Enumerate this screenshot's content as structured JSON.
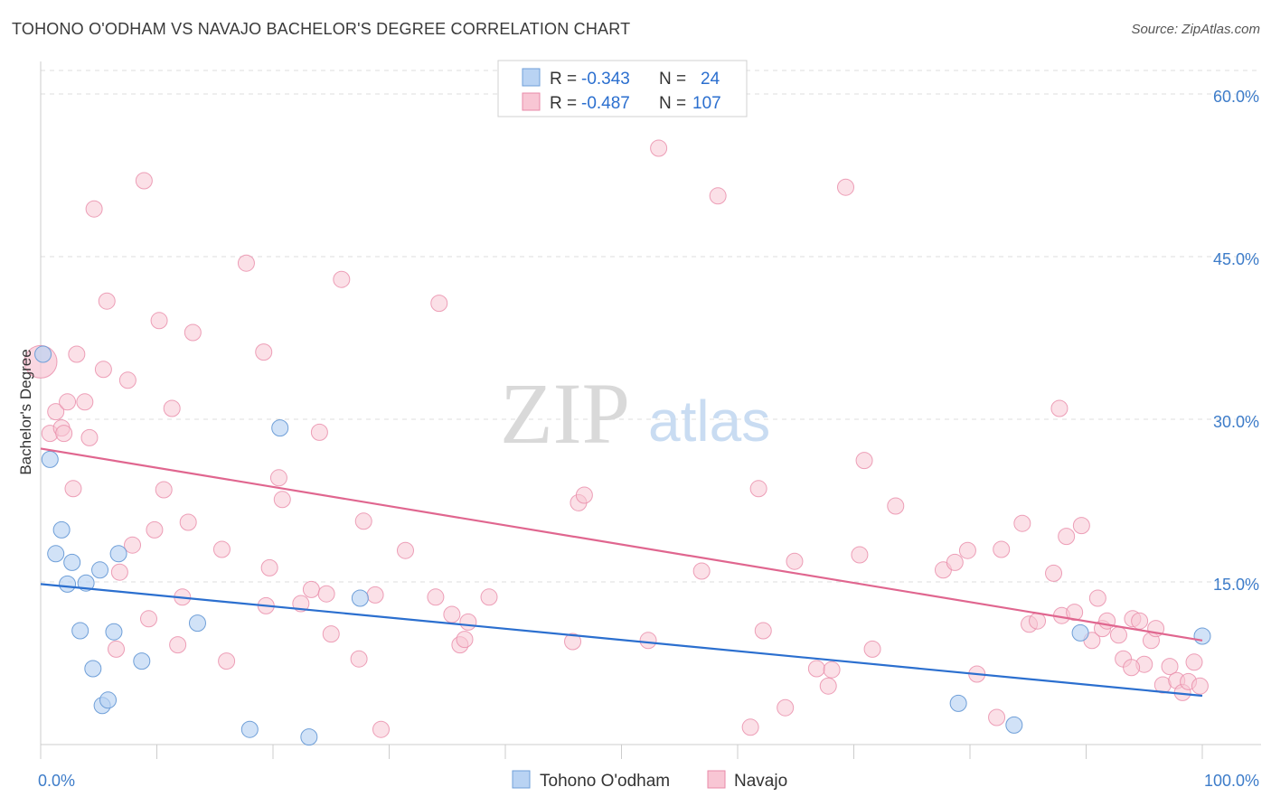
{
  "header": {
    "title": "TOHONO O'ODHAM VS NAVAJO BACHELOR'S DEGREE CORRELATION CHART",
    "source": "Source: ZipAtlas.com"
  },
  "watermark": {
    "part1": "ZIP",
    "part2": "atlas"
  },
  "colors": {
    "blue_fill": "#b9d3f3",
    "blue_stroke": "#6f9fd8",
    "blue_line": "#2b6fcf",
    "pink_fill": "#f8c6d4",
    "pink_stroke": "#e98aa8",
    "pink_line": "#e0668f",
    "tick": "#3d7cc9",
    "grid": "#dddddd"
  },
  "legend": {
    "rows": [
      {
        "r_label": "R =",
        "r_value": "-0.343",
        "n_label": "N =",
        "n_value": "24"
      },
      {
        "r_label": "R =",
        "r_value": "-0.487",
        "n_label": "N =",
        "n_value": "107"
      }
    ]
  },
  "chart_data": {
    "type": "scatter",
    "title": "TOHONO O'ODHAM VS NAVAJO BACHELOR'S DEGREE CORRELATION CHART",
    "xlabel": "",
    "ylabel": "Bachelor's Degree",
    "xlim": [
      0,
      100
    ],
    "ylim": [
      0,
      63
    ],
    "x_tick_labels": [
      "0.0%",
      "100.0%"
    ],
    "y_ticks": [
      15,
      30,
      45,
      60
    ],
    "y_tick_labels": [
      "15.0%",
      "30.0%",
      "45.0%",
      "60.0%"
    ],
    "series": [
      {
        "name": "Tohono O'odham",
        "color": "blue",
        "R": -0.343,
        "N": 24,
        "trend": {
          "x": [
            0,
            100
          ],
          "y": [
            14.8,
            4.5
          ]
        },
        "points": [
          {
            "x": 0.2,
            "y": 36.0
          },
          {
            "x": 0.8,
            "y": 26.3
          },
          {
            "x": 1.3,
            "y": 17.6
          },
          {
            "x": 1.8,
            "y": 19.8
          },
          {
            "x": 2.3,
            "y": 14.8
          },
          {
            "x": 2.7,
            "y": 16.8
          },
          {
            "x": 3.4,
            "y": 10.5
          },
          {
            "x": 3.9,
            "y": 14.9
          },
          {
            "x": 4.5,
            "y": 7.0
          },
          {
            "x": 5.1,
            "y": 16.1
          },
          {
            "x": 5.3,
            "y": 3.6
          },
          {
            "x": 5.8,
            "y": 4.1
          },
          {
            "x": 6.3,
            "y": 10.4
          },
          {
            "x": 6.7,
            "y": 17.6
          },
          {
            "x": 8.7,
            "y": 7.7
          },
          {
            "x": 13.5,
            "y": 11.2
          },
          {
            "x": 18.0,
            "y": 1.4
          },
          {
            "x": 20.6,
            "y": 29.2
          },
          {
            "x": 23.1,
            "y": 0.7
          },
          {
            "x": 27.5,
            "y": 13.5
          },
          {
            "x": 83.8,
            "y": 1.8
          },
          {
            "x": 79.0,
            "y": 3.8
          },
          {
            "x": 89.5,
            "y": 10.3
          },
          {
            "x": 100.0,
            "y": 10.0
          }
        ]
      },
      {
        "name": "Navajo",
        "color": "pink",
        "R": -0.487,
        "N": 107,
        "trend": {
          "x": [
            0,
            100
          ],
          "y": [
            27.3,
            9.6
          ]
        },
        "points": [
          {
            "x": 0.0,
            "y": 35.3
          },
          {
            "x": 0.8,
            "y": 28.7
          },
          {
            "x": 1.3,
            "y": 30.7
          },
          {
            "x": 1.8,
            "y": 29.2
          },
          {
            "x": 2.0,
            "y": 28.7
          },
          {
            "x": 2.3,
            "y": 31.6
          },
          {
            "x": 2.8,
            "y": 23.6
          },
          {
            "x": 3.1,
            "y": 36.0
          },
          {
            "x": 3.8,
            "y": 31.6
          },
          {
            "x": 4.2,
            "y": 28.3
          },
          {
            "x": 4.6,
            "y": 49.4
          },
          {
            "x": 5.4,
            "y": 34.6
          },
          {
            "x": 5.7,
            "y": 40.9
          },
          {
            "x": 6.5,
            "y": 8.8
          },
          {
            "x": 6.8,
            "y": 15.9
          },
          {
            "x": 7.5,
            "y": 33.6
          },
          {
            "x": 7.9,
            "y": 18.4
          },
          {
            "x": 8.9,
            "y": 52.0
          },
          {
            "x": 9.3,
            "y": 11.6
          },
          {
            "x": 9.8,
            "y": 19.8
          },
          {
            "x": 10.2,
            "y": 39.1
          },
          {
            "x": 10.6,
            "y": 23.5
          },
          {
            "x": 11.3,
            "y": 31.0
          },
          {
            "x": 11.8,
            "y": 9.2
          },
          {
            "x": 12.2,
            "y": 13.6
          },
          {
            "x": 12.7,
            "y": 20.5
          },
          {
            "x": 13.1,
            "y": 38.0
          },
          {
            "x": 16.0,
            "y": 7.7
          },
          {
            "x": 15.6,
            "y": 18.0
          },
          {
            "x": 17.7,
            "y": 44.4
          },
          {
            "x": 19.2,
            "y": 36.2
          },
          {
            "x": 19.4,
            "y": 12.8
          },
          {
            "x": 19.7,
            "y": 16.3
          },
          {
            "x": 20.5,
            "y": 24.6
          },
          {
            "x": 20.8,
            "y": 22.6
          },
          {
            "x": 22.4,
            "y": 13.0
          },
          {
            "x": 23.3,
            "y": 14.3
          },
          {
            "x": 24.0,
            "y": 28.8
          },
          {
            "x": 24.6,
            "y": 13.9
          },
          {
            "x": 25.0,
            "y": 10.2
          },
          {
            "x": 25.9,
            "y": 42.9
          },
          {
            "x": 27.4,
            "y": 7.9
          },
          {
            "x": 27.8,
            "y": 20.6
          },
          {
            "x": 28.8,
            "y": 13.8
          },
          {
            "x": 29.3,
            "y": 1.4
          },
          {
            "x": 31.4,
            "y": 17.9
          },
          {
            "x": 34.0,
            "y": 13.6
          },
          {
            "x": 34.3,
            "y": 40.7
          },
          {
            "x": 35.4,
            "y": 12.0
          },
          {
            "x": 36.1,
            "y": 9.2
          },
          {
            "x": 36.5,
            "y": 9.7
          },
          {
            "x": 36.8,
            "y": 11.3
          },
          {
            "x": 38.6,
            "y": 13.6
          },
          {
            "x": 45.8,
            "y": 9.5
          },
          {
            "x": 46.3,
            "y": 22.3
          },
          {
            "x": 46.8,
            "y": 23.0
          },
          {
            "x": 52.3,
            "y": 9.6
          },
          {
            "x": 53.2,
            "y": 55.0
          },
          {
            "x": 56.9,
            "y": 16.0
          },
          {
            "x": 58.3,
            "y": 50.6
          },
          {
            "x": 61.1,
            "y": 1.6
          },
          {
            "x": 61.8,
            "y": 23.6
          },
          {
            "x": 62.2,
            "y": 10.5
          },
          {
            "x": 64.1,
            "y": 3.4
          },
          {
            "x": 64.9,
            "y": 16.9
          },
          {
            "x": 66.8,
            "y": 7.0
          },
          {
            "x": 67.8,
            "y": 5.4
          },
          {
            "x": 68.1,
            "y": 6.9
          },
          {
            "x": 69.3,
            "y": 51.4
          },
          {
            "x": 70.5,
            "y": 17.5
          },
          {
            "x": 70.9,
            "y": 26.2
          },
          {
            "x": 71.6,
            "y": 8.8
          },
          {
            "x": 73.6,
            "y": 22.0
          },
          {
            "x": 77.7,
            "y": 16.1
          },
          {
            "x": 78.7,
            "y": 16.8
          },
          {
            "x": 79.8,
            "y": 17.9
          },
          {
            "x": 80.6,
            "y": 6.5
          },
          {
            "x": 82.7,
            "y": 18.0
          },
          {
            "x": 82.3,
            "y": 2.5
          },
          {
            "x": 84.5,
            "y": 20.4
          },
          {
            "x": 85.1,
            "y": 11.1
          },
          {
            "x": 85.8,
            "y": 11.4
          },
          {
            "x": 87.2,
            "y": 15.8
          },
          {
            "x": 87.7,
            "y": 31.0
          },
          {
            "x": 87.9,
            "y": 11.9
          },
          {
            "x": 88.3,
            "y": 19.2
          },
          {
            "x": 89.0,
            "y": 12.2
          },
          {
            "x": 89.6,
            "y": 20.2
          },
          {
            "x": 90.5,
            "y": 9.6
          },
          {
            "x": 91.0,
            "y": 13.5
          },
          {
            "x": 91.4,
            "y": 10.7
          },
          {
            "x": 91.8,
            "y": 11.4
          },
          {
            "x": 92.8,
            "y": 10.1
          },
          {
            "x": 93.2,
            "y": 7.9
          },
          {
            "x": 94.0,
            "y": 11.6
          },
          {
            "x": 94.6,
            "y": 11.4
          },
          {
            "x": 95.0,
            "y": 7.4
          },
          {
            "x": 95.6,
            "y": 9.6
          },
          {
            "x": 96.0,
            "y": 10.7
          },
          {
            "x": 96.6,
            "y": 5.5
          },
          {
            "x": 97.2,
            "y": 7.2
          },
          {
            "x": 97.8,
            "y": 5.9
          },
          {
            "x": 98.3,
            "y": 4.8
          },
          {
            "x": 98.8,
            "y": 5.8
          },
          {
            "x": 99.3,
            "y": 7.6
          },
          {
            "x": 99.8,
            "y": 5.4
          },
          {
            "x": 93.9,
            "y": 7.1
          }
        ]
      }
    ]
  }
}
